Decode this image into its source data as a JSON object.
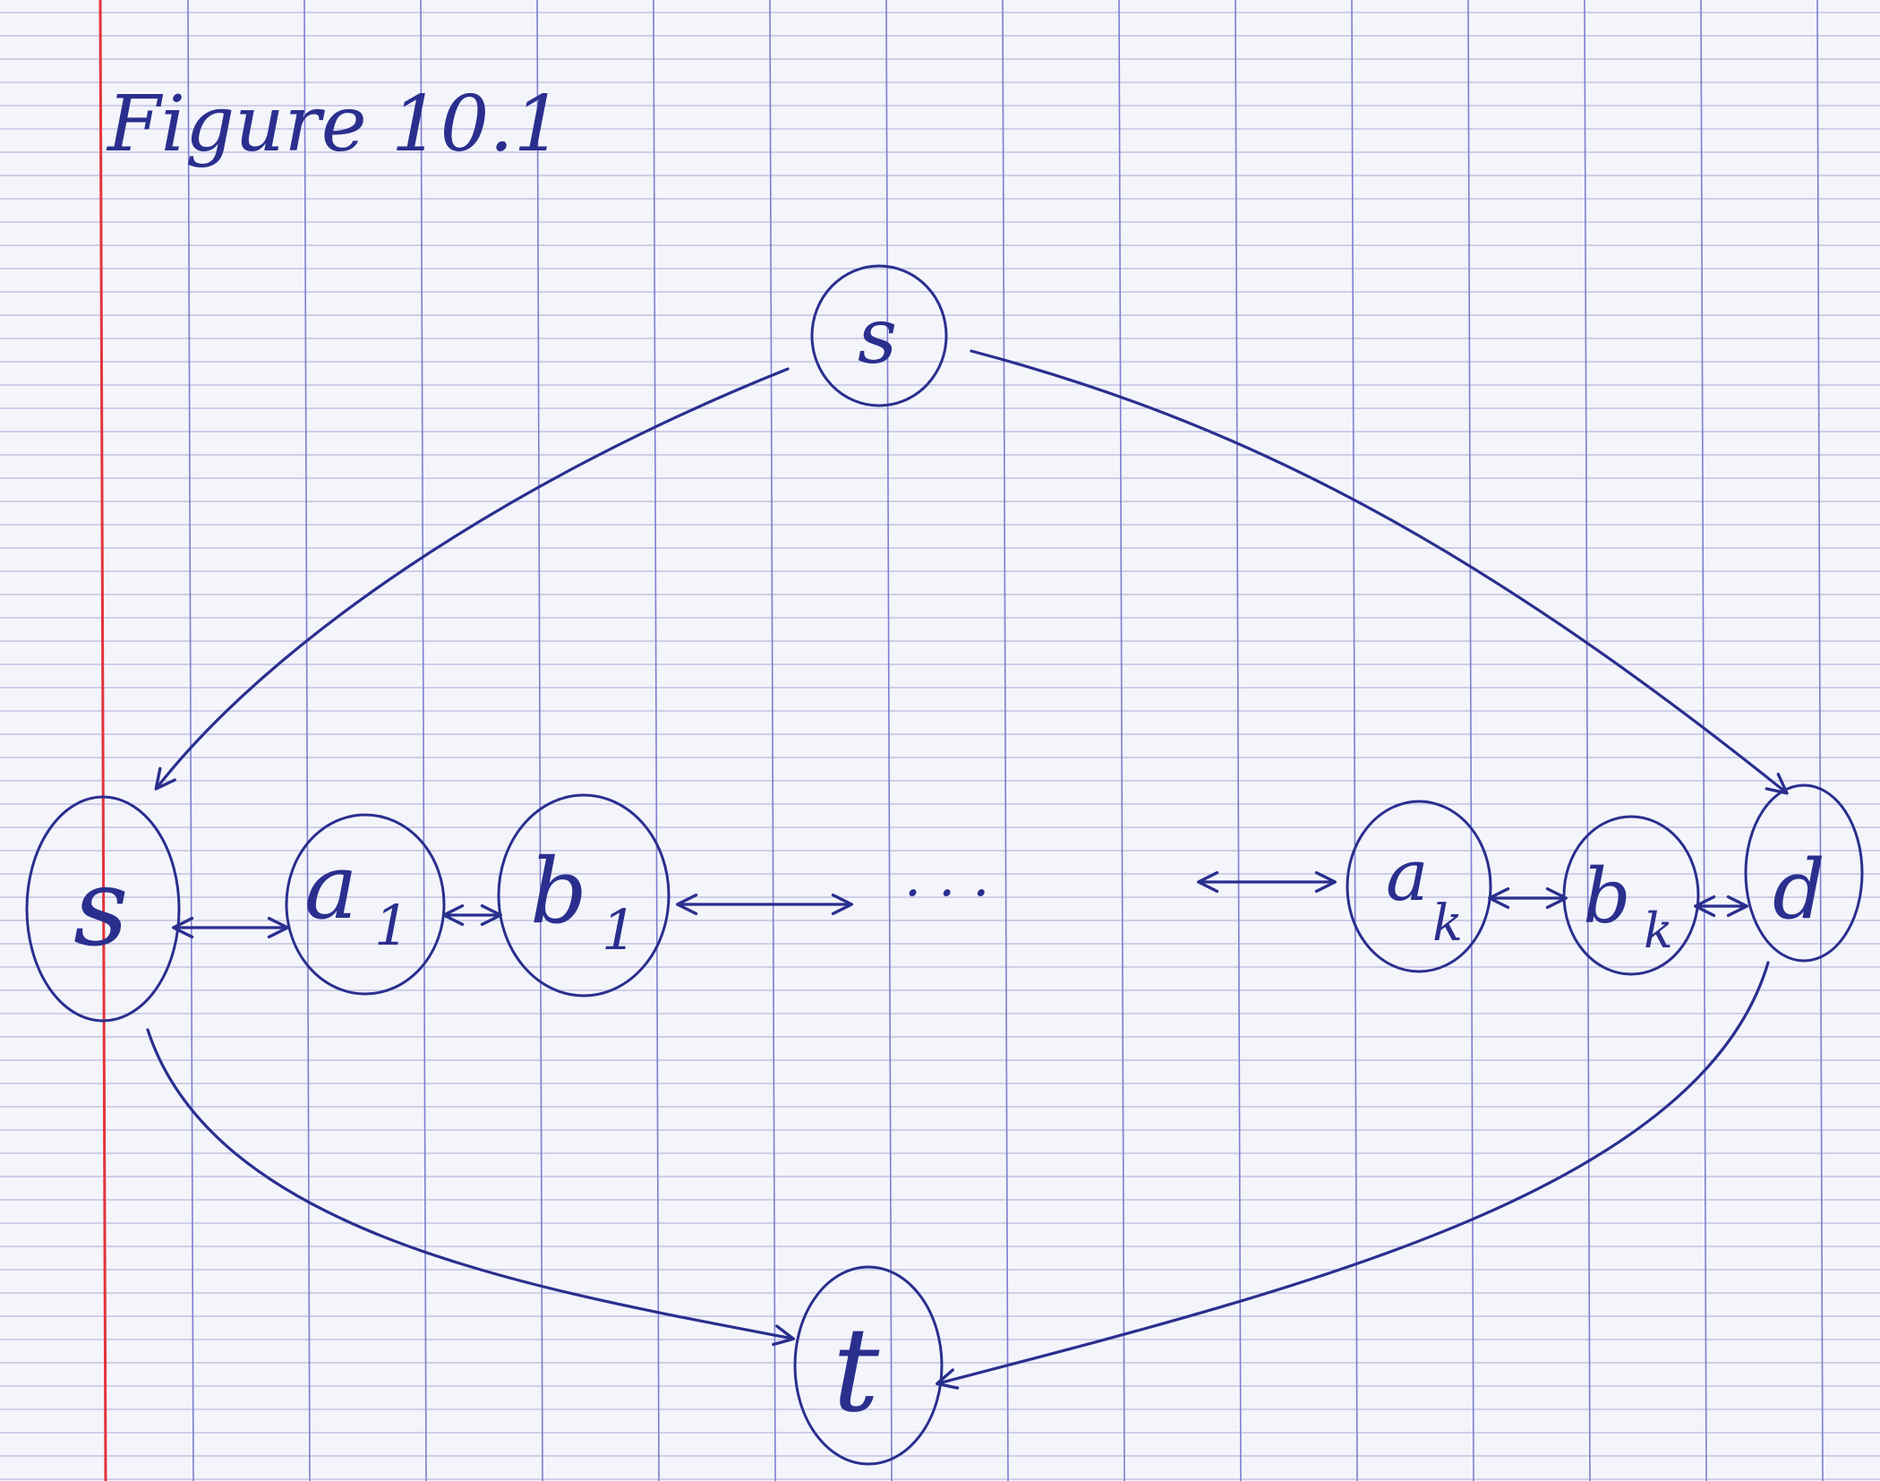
{
  "title": "Figure 10.1",
  "colors": {
    "ink": "#2a2f8e",
    "paper": "#f4f4fb",
    "grid_line": "#b9b9dc",
    "grid_vertical": "#7d7fcf",
    "margin_line": "#e3343c"
  },
  "nodes": [
    {
      "id": "s_top",
      "label": "s",
      "sub": ""
    },
    {
      "id": "s_left",
      "label": "s",
      "sub": ""
    },
    {
      "id": "a1",
      "label": "a",
      "sub": "1"
    },
    {
      "id": "b1",
      "label": "b",
      "sub": "1"
    },
    {
      "id": "ak",
      "label": "a",
      "sub": "k"
    },
    {
      "id": "bk",
      "label": "b",
      "sub": "k"
    },
    {
      "id": "d",
      "label": "d",
      "sub": ""
    },
    {
      "id": "t",
      "label": "t",
      "sub": ""
    }
  ],
  "ellipsis": ". . ."
}
